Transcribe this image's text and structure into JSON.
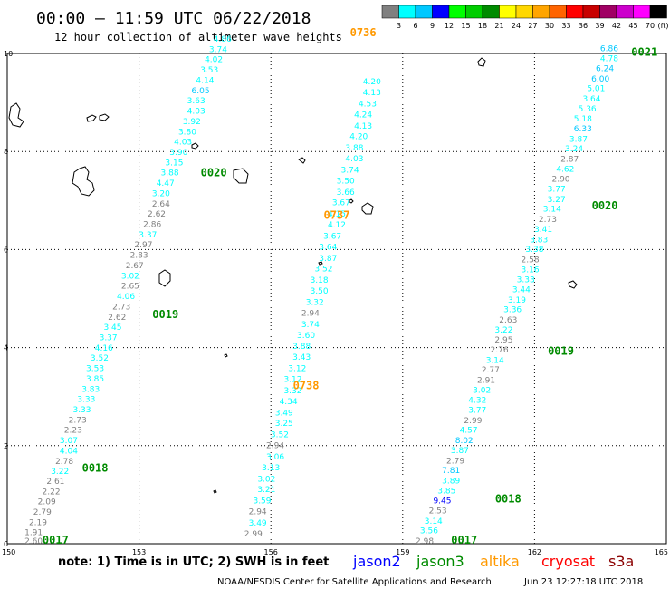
{
  "header": {
    "title": "00:00 – 11:59 UTC 06/22/2018",
    "subtitle": "12 hour collection of altimeter wave heights"
  },
  "legend": {
    "unit": "(ft)",
    "values": [
      "3",
      "6",
      "9",
      "12",
      "15",
      "18",
      "21",
      "24",
      "27",
      "30",
      "33",
      "36",
      "39",
      "42",
      "45",
      "70"
    ],
    "colors": [
      "#808080",
      "#00ffff",
      "#00c8ff",
      "#0000ff",
      "#00ff00",
      "#00cd00",
      "#008b00",
      "#ffff00",
      "#ffd700",
      "#ffa500",
      "#ff6400",
      "#ff0000",
      "#c80000",
      "#a00064",
      "#cc00cc",
      "#ff00ff",
      "#000000"
    ]
  },
  "footer": {
    "note": "note: 1) Time is in UTC; 2) SWH is in feet",
    "satellites": [
      {
        "name": "jason2",
        "color": "#0000ff"
      },
      {
        "name": "jason3",
        "color": "#008b00"
      },
      {
        "name": "altika",
        "color": "#ff9900"
      },
      {
        "name": "cryosat",
        "color": "#ff0000"
      },
      {
        "name": "s3a",
        "color": "#8b0000"
      }
    ],
    "credit": "NOAA/NESDIS Center for Satellite Applications and Research",
    "generated": "Jun 23 12:27:18 UTC 2018"
  },
  "chart_data": {
    "type": "scatter",
    "title": "00:00 – 11:59 UTC 06/22/2018",
    "subtitle": "12 hour collection of altimeter wave heights",
    "xlabel": "",
    "ylabel": "",
    "xlim": [
      150,
      165
    ],
    "ylim": [
      0,
      10
    ],
    "xticks": [
      150,
      153,
      156,
      159,
      162,
      165
    ],
    "yticks": [
      0,
      2,
      4,
      6,
      8,
      10
    ],
    "grid": true,
    "passes": [
      {
        "satellite": "jason3",
        "track": "A",
        "time_labels": [
          {
            "text": "0017",
            "x": 151.1,
            "y": 0.0
          },
          {
            "text": "0018",
            "x": 152.0,
            "y": 1.47
          },
          {
            "text": "0019",
            "x": 153.6,
            "y": 4.6
          },
          {
            "text": "0020",
            "x": 154.7,
            "y": 7.5
          }
        ],
        "points": [
          {
            "x": 150.6,
            "y": 0.0,
            "v": "2.60"
          },
          {
            "x": 150.6,
            "y": 0.18,
            "v": "1.91"
          },
          {
            "x": 150.7,
            "y": 0.38,
            "v": "2.19"
          },
          {
            "x": 150.8,
            "y": 0.59,
            "v": "2.79"
          },
          {
            "x": 150.9,
            "y": 0.8,
            "v": "2.09"
          },
          {
            "x": 151.0,
            "y": 1.01,
            "v": "2.22"
          },
          {
            "x": 151.1,
            "y": 1.22,
            "v": "2.61"
          },
          {
            "x": 151.2,
            "y": 1.42,
            "v": "3.22"
          },
          {
            "x": 151.3,
            "y": 1.63,
            "v": "2.78"
          },
          {
            "x": 151.4,
            "y": 1.84,
            "v": "4.04"
          },
          {
            "x": 151.4,
            "y": 2.05,
            "v": "3.07"
          },
          {
            "x": 151.5,
            "y": 2.26,
            "v": "2.23"
          },
          {
            "x": 151.6,
            "y": 2.47,
            "v": "2.73"
          },
          {
            "x": 151.7,
            "y": 2.68,
            "v": "3.33"
          },
          {
            "x": 151.8,
            "y": 2.89,
            "v": "3.33"
          },
          {
            "x": 151.9,
            "y": 3.1,
            "v": "3.83"
          },
          {
            "x": 152.0,
            "y": 3.31,
            "v": "3.85"
          },
          {
            "x": 152.0,
            "y": 3.52,
            "v": "3.53"
          },
          {
            "x": 152.1,
            "y": 3.73,
            "v": "3.52"
          },
          {
            "x": 152.2,
            "y": 3.94,
            "v": "4.16"
          },
          {
            "x": 152.3,
            "y": 4.15,
            "v": "3.37"
          },
          {
            "x": 152.4,
            "y": 4.36,
            "v": "3.45"
          },
          {
            "x": 152.5,
            "y": 4.57,
            "v": "2.62"
          },
          {
            "x": 152.6,
            "y": 4.78,
            "v": "2.73"
          },
          {
            "x": 152.7,
            "y": 4.99,
            "v": "4.06"
          },
          {
            "x": 152.8,
            "y": 5.2,
            "v": "2.65"
          },
          {
            "x": 152.8,
            "y": 5.41,
            "v": "3.02"
          },
          {
            "x": 152.9,
            "y": 5.62,
            "v": "2.67"
          },
          {
            "x": 153.0,
            "y": 5.83,
            "v": "2.83"
          },
          {
            "x": 153.1,
            "y": 6.04,
            "v": "2.97"
          },
          {
            "x": 153.2,
            "y": 6.25,
            "v": "3.37"
          },
          {
            "x": 153.3,
            "y": 6.46,
            "v": "2.86"
          },
          {
            "x": 153.4,
            "y": 6.67,
            "v": "2.62"
          },
          {
            "x": 153.5,
            "y": 6.88,
            "v": "2.64"
          },
          {
            "x": 153.5,
            "y": 7.09,
            "v": "3.20"
          },
          {
            "x": 153.6,
            "y": 7.3,
            "v": "4.47"
          },
          {
            "x": 153.7,
            "y": 7.51,
            "v": "3.88"
          },
          {
            "x": 153.8,
            "y": 7.72,
            "v": "3.15"
          },
          {
            "x": 153.9,
            "y": 7.93,
            "v": "3.90"
          },
          {
            "x": 154.0,
            "y": 8.14,
            "v": "4.03"
          },
          {
            "x": 154.1,
            "y": 8.35,
            "v": "3.80"
          },
          {
            "x": 154.2,
            "y": 8.56,
            "v": "3.92"
          },
          {
            "x": 154.3,
            "y": 8.77,
            "v": "4.03"
          },
          {
            "x": 154.3,
            "y": 8.98,
            "v": "3.63"
          },
          {
            "x": 154.4,
            "y": 9.19,
            "v": "6.05"
          },
          {
            "x": 154.5,
            "y": 9.4,
            "v": "4.14"
          },
          {
            "x": 154.6,
            "y": 9.61,
            "v": "3.53"
          },
          {
            "x": 154.7,
            "y": 9.82,
            "v": "4.02"
          },
          {
            "x": 154.8,
            "y": 10.03,
            "v": "3.74"
          },
          {
            "x": 154.9,
            "y": 10.24,
            "v": "4.86"
          }
        ]
      },
      {
        "satellite": "altika",
        "track": "B",
        "time_labels": [
          {
            "text": "0736",
            "x": 158.1,
            "y": 10.35
          },
          {
            "text": "0737",
            "x": 157.5,
            "y": 6.63
          },
          {
            "text": "0738",
            "x": 156.8,
            "y": 3.15
          }
        ],
        "points": [
          {
            "x": 155.6,
            "y": 0.15,
            "v": "2.99"
          },
          {
            "x": 155.7,
            "y": 0.37,
            "v": "3.49"
          },
          {
            "x": 155.7,
            "y": 0.6,
            "v": "2.94"
          },
          {
            "x": 155.8,
            "y": 0.82,
            "v": "3.59"
          },
          {
            "x": 155.9,
            "y": 1.05,
            "v": "3.21"
          },
          {
            "x": 155.9,
            "y": 1.27,
            "v": "3.02"
          },
          {
            "x": 156.0,
            "y": 1.5,
            "v": "3.13"
          },
          {
            "x": 156.1,
            "y": 1.72,
            "v": "3.06"
          },
          {
            "x": 156.1,
            "y": 1.95,
            "v": "2.94"
          },
          {
            "x": 156.2,
            "y": 2.17,
            "v": "3.52"
          },
          {
            "x": 156.3,
            "y": 2.4,
            "v": "3.25"
          },
          {
            "x": 156.3,
            "y": 2.62,
            "v": "3.49"
          },
          {
            "x": 156.4,
            "y": 2.85,
            "v": "4.34"
          },
          {
            "x": 156.5,
            "y": 3.07,
            "v": "3.32"
          },
          {
            "x": 156.5,
            "y": 3.3,
            "v": "3.12"
          },
          {
            "x": 156.6,
            "y": 3.52,
            "v": "3.12"
          },
          {
            "x": 156.7,
            "y": 3.75,
            "v": "3.43"
          },
          {
            "x": 156.7,
            "y": 3.97,
            "v": "3.88"
          },
          {
            "x": 156.8,
            "y": 4.2,
            "v": "3.60"
          },
          {
            "x": 156.9,
            "y": 4.42,
            "v": "3.74"
          },
          {
            "x": 156.9,
            "y": 4.65,
            "v": "2.94"
          },
          {
            "x": 157.0,
            "y": 4.87,
            "v": "3.32"
          },
          {
            "x": 157.1,
            "y": 5.1,
            "v": "3.50"
          },
          {
            "x": 157.1,
            "y": 5.32,
            "v": "3.18"
          },
          {
            "x": 157.2,
            "y": 5.55,
            "v": "3.52"
          },
          {
            "x": 157.3,
            "y": 5.77,
            "v": "3.87"
          },
          {
            "x": 157.3,
            "y": 6.0,
            "v": "3.64"
          },
          {
            "x": 157.4,
            "y": 6.22,
            "v": "3.67"
          },
          {
            "x": 157.5,
            "y": 6.45,
            "v": "4.12"
          },
          {
            "x": 157.5,
            "y": 6.67,
            "v": "4.15"
          },
          {
            "x": 157.6,
            "y": 6.9,
            "v": "3.67"
          },
          {
            "x": 157.7,
            "y": 7.12,
            "v": "3.66"
          },
          {
            "x": 157.7,
            "y": 7.35,
            "v": "3.50"
          },
          {
            "x": 157.8,
            "y": 7.57,
            "v": "3.74"
          },
          {
            "x": 157.9,
            "y": 7.8,
            "v": "4.03"
          },
          {
            "x": 157.9,
            "y": 8.02,
            "v": "3.88"
          },
          {
            "x": 158.0,
            "y": 8.25,
            "v": "4.20"
          },
          {
            "x": 158.1,
            "y": 8.47,
            "v": "4.13"
          },
          {
            "x": 158.1,
            "y": 8.7,
            "v": "4.24"
          },
          {
            "x": 158.2,
            "y": 8.92,
            "v": "4.53"
          },
          {
            "x": 158.3,
            "y": 9.15,
            "v": "4.13"
          },
          {
            "x": 158.3,
            "y": 9.37,
            "v": "4.20"
          }
        ]
      },
      {
        "satellite": "jason3",
        "track": "C",
        "time_labels": [
          {
            "text": "0017",
            "x": 160.4,
            "y": 0.0
          },
          {
            "text": "0018",
            "x": 161.4,
            "y": 0.84
          },
          {
            "text": "0019",
            "x": 162.6,
            "y": 3.85
          },
          {
            "text": "0020",
            "x": 163.6,
            "y": 6.82
          },
          {
            "text": "0021",
            "x": 164.5,
            "y": 9.95
          }
        ],
        "points": [
          {
            "x": 159.5,
            "y": 0.0,
            "v": "2.98"
          },
          {
            "x": 159.6,
            "y": 0.21,
            "v": "3.56"
          },
          {
            "x": 159.7,
            "y": 0.41,
            "v": "3.14"
          },
          {
            "x": 159.8,
            "y": 0.62,
            "v": "2.53"
          },
          {
            "x": 159.9,
            "y": 0.82,
            "v": "9.45"
          },
          {
            "x": 160.0,
            "y": 1.03,
            "v": "3.85"
          },
          {
            "x": 160.1,
            "y": 1.23,
            "v": "3.89"
          },
          {
            "x": 160.1,
            "y": 1.44,
            "v": "7.81"
          },
          {
            "x": 160.2,
            "y": 1.64,
            "v": "2.79"
          },
          {
            "x": 160.3,
            "y": 1.85,
            "v": "3.87"
          },
          {
            "x": 160.4,
            "y": 2.05,
            "v": "8.02"
          },
          {
            "x": 160.5,
            "y": 2.26,
            "v": "4.57"
          },
          {
            "x": 160.6,
            "y": 2.46,
            "v": "2.99"
          },
          {
            "x": 160.7,
            "y": 2.67,
            "v": "3.77"
          },
          {
            "x": 160.7,
            "y": 2.87,
            "v": "4.32"
          },
          {
            "x": 160.8,
            "y": 3.08,
            "v": "3.02"
          },
          {
            "x": 160.9,
            "y": 3.28,
            "v": "2.91"
          },
          {
            "x": 161.0,
            "y": 3.49,
            "v": "2.77"
          },
          {
            "x": 161.1,
            "y": 3.69,
            "v": "3.14"
          },
          {
            "x": 161.2,
            "y": 3.9,
            "v": "2.76"
          },
          {
            "x": 161.3,
            "y": 4.1,
            "v": "2.95"
          },
          {
            "x": 161.3,
            "y": 4.31,
            "v": "3.22"
          },
          {
            "x": 161.4,
            "y": 4.51,
            "v": "2.63"
          },
          {
            "x": 161.5,
            "y": 4.72,
            "v": "3.36"
          },
          {
            "x": 161.6,
            "y": 4.92,
            "v": "3.19"
          },
          {
            "x": 161.7,
            "y": 5.13,
            "v": "3.44"
          },
          {
            "x": 161.8,
            "y": 5.33,
            "v": "3.33"
          },
          {
            "x": 161.9,
            "y": 5.54,
            "v": "3.16"
          },
          {
            "x": 161.9,
            "y": 5.74,
            "v": "2.58"
          },
          {
            "x": 162.0,
            "y": 5.95,
            "v": "3.38"
          },
          {
            "x": 162.1,
            "y": 6.15,
            "v": "3.83"
          },
          {
            "x": 162.2,
            "y": 6.36,
            "v": "3.41"
          },
          {
            "x": 162.3,
            "y": 6.56,
            "v": "2.73"
          },
          {
            "x": 162.4,
            "y": 6.77,
            "v": "3.14"
          },
          {
            "x": 162.5,
            "y": 6.97,
            "v": "3.27"
          },
          {
            "x": 162.5,
            "y": 7.18,
            "v": "3.77"
          },
          {
            "x": 162.6,
            "y": 7.38,
            "v": "2.90"
          },
          {
            "x": 162.7,
            "y": 7.59,
            "v": "4.62"
          },
          {
            "x": 162.8,
            "y": 7.79,
            "v": "2.87"
          },
          {
            "x": 162.9,
            "y": 8.0,
            "v": "3.24"
          },
          {
            "x": 163.0,
            "y": 8.2,
            "v": "3.87"
          },
          {
            "x": 163.1,
            "y": 8.41,
            "v": "6.33"
          },
          {
            "x": 163.1,
            "y": 8.61,
            "v": "5.18"
          },
          {
            "x": 163.2,
            "y": 8.82,
            "v": "5.36"
          },
          {
            "x": 163.3,
            "y": 9.02,
            "v": "3.64"
          },
          {
            "x": 163.4,
            "y": 9.23,
            "v": "5.01"
          },
          {
            "x": 163.5,
            "y": 9.43,
            "v": "6.00"
          },
          {
            "x": 163.6,
            "y": 9.64,
            "v": "6.24"
          },
          {
            "x": 163.7,
            "y": 9.84,
            "v": "4.78"
          },
          {
            "x": 163.7,
            "y": 10.05,
            "v": "6.86"
          }
        ]
      }
    ]
  }
}
